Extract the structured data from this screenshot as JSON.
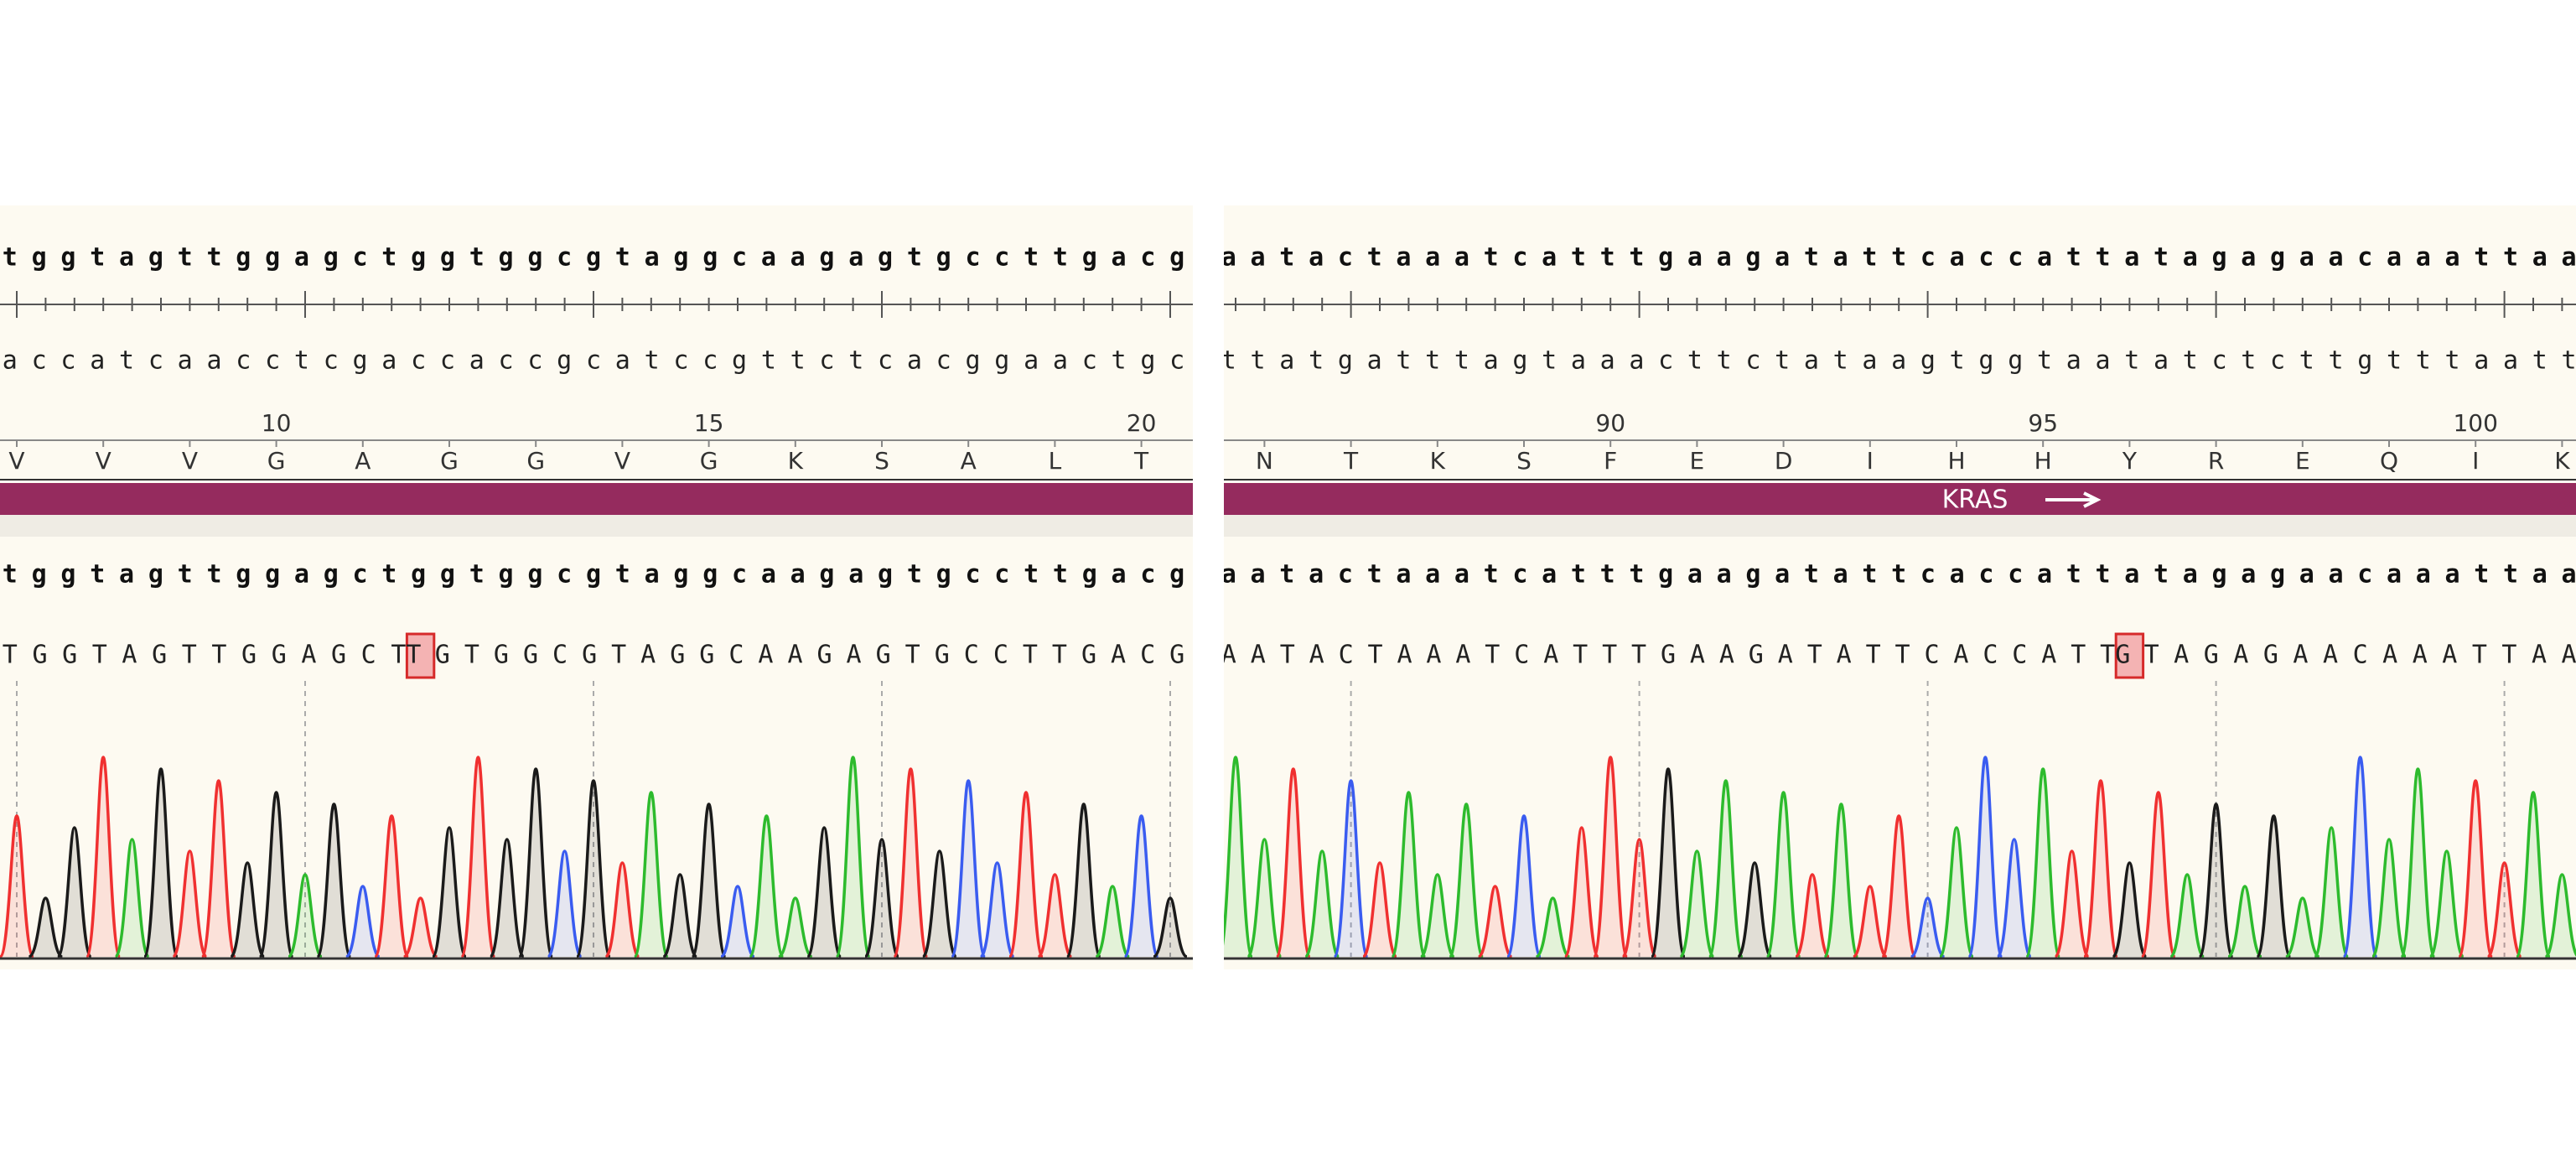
{
  "panels": [
    {
      "top_strand": "tggtagttggagctggtggcgtaggcaagagtgccttgacg",
      "bottom_strand": "accatcaacctcgaccaccgcatccgttctcacggaactgc",
      "numbers": [
        "10",
        "15",
        "20"
      ],
      "amino_acids": [
        "V",
        "V",
        "V",
        "G",
        "A",
        "G",
        "G",
        "V",
        "G",
        "K",
        "S",
        "A",
        "L",
        "T"
      ],
      "reference": "tggtagttggagctggtggcgtaggcaagagtgccttgacg",
      "read": {
        "before": "TGGTAGTTGGAGCT",
        "variant": "T",
        "after": "GTGGCGTAGGCAAGAGTGCCTTGACG"
      }
    },
    {
      "top_strand": "aatactaaatcatttgaagatattcaccattatagagaacaaattaa",
      "bottom_strand": "ttatgatttagtaaacttctataagtggtaatatctcttgtttaatt",
      "numbers": [
        "90",
        "95",
        "100"
      ],
      "amino_acids": [
        "N",
        "T",
        "K",
        "S",
        "F",
        "E",
        "D",
        "I",
        "H",
        "H",
        "Y",
        "R",
        "E",
        "Q",
        "I",
        "K"
      ],
      "feature_label": "KRAS",
      "reference": "aatactaaatcatttgaagatattcaccattatagagaacaaattaa",
      "read": {
        "before": "AATACTAAATCATTTGAAGATATTCACCATT",
        "variant": "G",
        "after": "TAGAGAACAAATTAA"
      }
    }
  ]
}
